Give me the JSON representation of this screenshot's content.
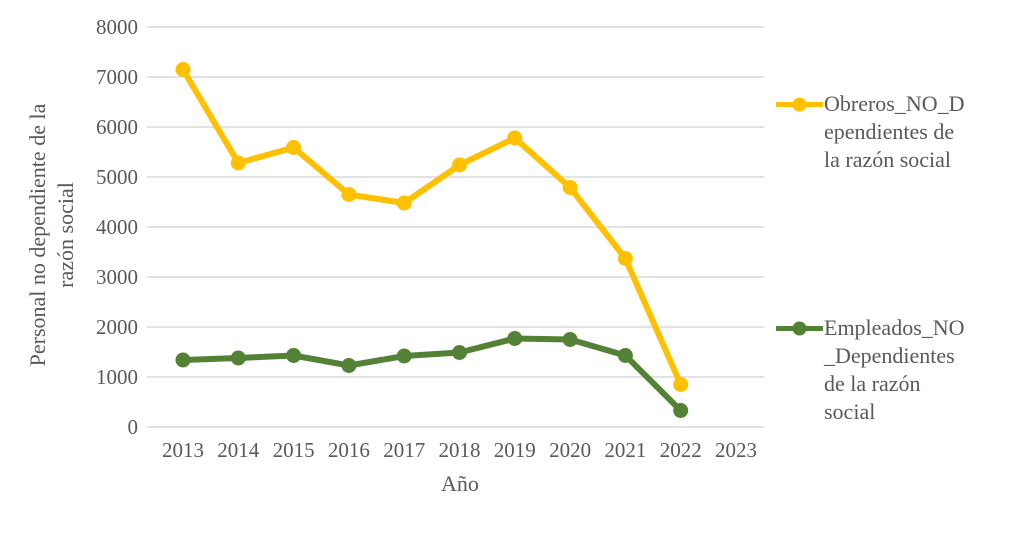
{
  "chart_data": {
    "type": "line",
    "title": "",
    "xlabel": "Año",
    "ylabel": "Personal no dependiente de la razón social",
    "ylabel_wrapped": "Personal no dependiente de la\nrazón social",
    "categories": [
      "2013",
      "2014",
      "2015",
      "2016",
      "2017",
      "2018",
      "2019",
      "2020",
      "2021",
      "2022",
      "2023"
    ],
    "series": [
      {
        "name": "Obreros_NO_Dependientes de la razón social",
        "legend_label": "Obreros_NO_D\nependientes de\nla razón social",
        "color": "#FFC000",
        "values": [
          7150,
          5280,
          5590,
          4650,
          4480,
          5240,
          5780,
          4790,
          3370,
          850,
          null
        ]
      },
      {
        "name": "Empleados_NO_Dependientes de la razón social",
        "legend_label": "Empleados_NO\n_Dependientes\nde la razón\nsocial",
        "color": "#538135",
        "values": [
          1340,
          1380,
          1430,
          1230,
          1420,
          1490,
          1770,
          1750,
          1430,
          330,
          null
        ]
      }
    ],
    "ylim": [
      0,
      8000
    ],
    "yticks": [
      0,
      1000,
      2000,
      3000,
      4000,
      5000,
      6000,
      7000,
      8000
    ],
    "grid": true,
    "legend_position": "right",
    "marker": "circle",
    "colors": {
      "grid": "#D9D9D9",
      "text": "#595959",
      "background": "#FFFFFF"
    }
  }
}
